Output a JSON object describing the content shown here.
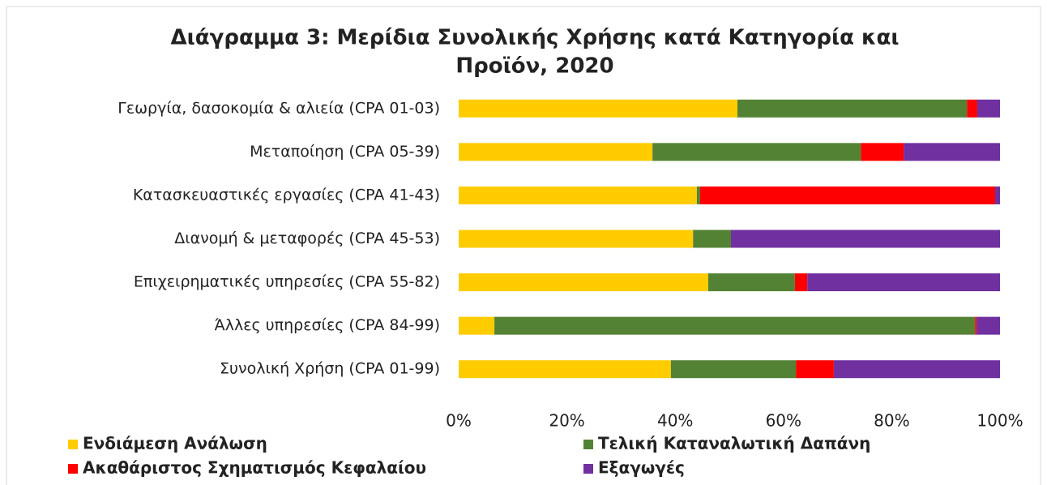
{
  "chart_data": {
    "type": "bar",
    "orientation": "horizontal",
    "stacked": true,
    "title": [
      "Διάγραμμα 3: Μερίδια Συνολικής Χρήσης κατά Κατηγορία και",
      "Προϊόν, 2020"
    ],
    "categories": [
      "Γεωργία, δασοκομία & αλιεία (CPA 01-03)",
      "Μεταποίηση (CPA 05-39)",
      "Κατασκευαστικές εργασίες (CPA 41-43)",
      "Διανομή & μεταφορές (CPA 45-53)",
      "Επιχειρηματικές υπηρεσίες (CPA 55-82)",
      "Άλλες υπηρεσίες (CPA 84-99)",
      "Συνολική Χρήση (CPA 01-99)"
    ],
    "series": [
      {
        "name": "Ενδιάμεση Ανάλωση",
        "color": "#ffcc00",
        "values": [
          51.5,
          35.8,
          44.0,
          43.3,
          46.1,
          6.6,
          39.2
        ]
      },
      {
        "name": "Τελική Καταναλωτική Δαπάνη",
        "color": "#548235",
        "values": [
          42.4,
          38.5,
          0.6,
          7.0,
          16.0,
          88.8,
          23.1
        ]
      },
      {
        "name": "Ακαθάριστος Σχηματισμός Κεφαλαίου",
        "color": "#ff0000",
        "values": [
          1.9,
          7.9,
          54.5,
          0,
          2.3,
          0.3,
          7.0
        ]
      },
      {
        "name": "Εξαγωγές",
        "color": "#7030a0",
        "values": [
          4.2,
          17.8,
          0.9,
          49.7,
          35.6,
          4.3,
          30.7
        ]
      }
    ],
    "xlim": [
      0,
      100
    ],
    "xticks": [
      {
        "value": 0,
        "label": "0%"
      },
      {
        "value": 20,
        "label": "20%"
      },
      {
        "value": 40,
        "label": "40%"
      },
      {
        "value": 60,
        "label": "60%"
      },
      {
        "value": 80,
        "label": "80%"
      },
      {
        "value": 100,
        "label": "100%"
      }
    ],
    "grid": false,
    "legend": "bottom"
  }
}
